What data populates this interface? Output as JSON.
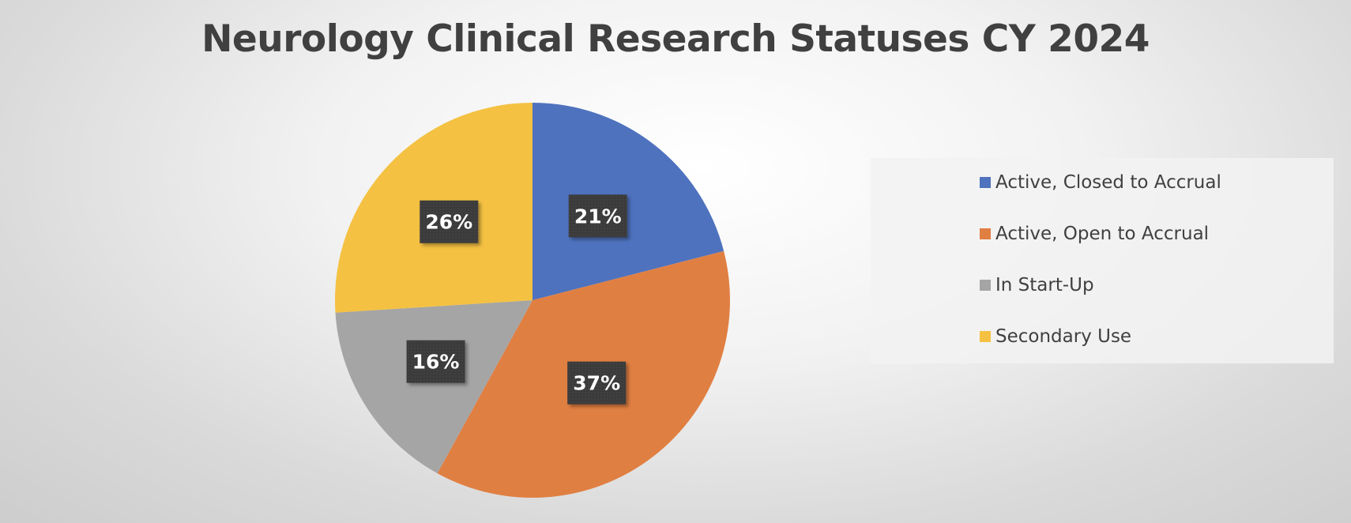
{
  "chart_data": {
    "type": "pie",
    "title": "Neurology Clinical Research Statuses CY 2024",
    "categories": [
      "Active, Closed to Accrual",
      "Active, Open to Accrual",
      "In Start-Up",
      "Secondary Use"
    ],
    "values": [
      21,
      37,
      16,
      26
    ],
    "data_labels": [
      "21%",
      "37%",
      "16%",
      "26%"
    ],
    "colors": [
      "#4e72be",
      "#e07f42",
      "#a5a5a5",
      "#f4c142"
    ],
    "label_style": {
      "background": "#3a3a3a",
      "text_color": "#ffffff"
    },
    "legend": {
      "position": "right"
    }
  }
}
